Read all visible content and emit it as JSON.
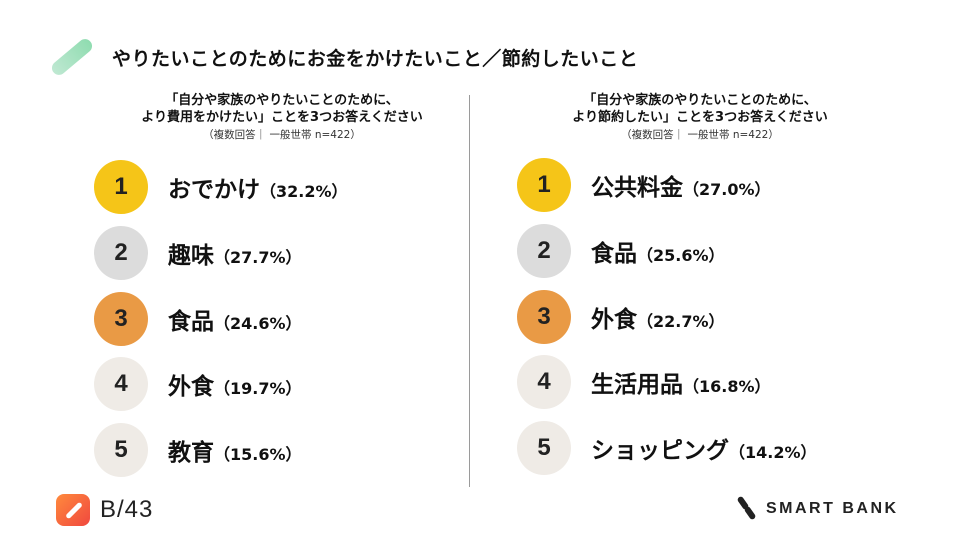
{
  "title": "やりたいことのためにお金をかけたいこと／節約したいこと",
  "left": {
    "question": "「自分や家族のやりたいことのために、\nより費用をかけたい」ことを3つお答えください",
    "note": "（複数回答｜ 一般世帯 n=422）",
    "ranks": [
      {
        "rank": "1",
        "name": "おでかけ",
        "pct": "（32.2%）"
      },
      {
        "rank": "2",
        "name": "趣味",
        "pct": "（27.7%）"
      },
      {
        "rank": "3",
        "name": "食品",
        "pct": "（24.6%）"
      },
      {
        "rank": "4",
        "name": "外食",
        "pct": "（19.7%）"
      },
      {
        "rank": "5",
        "name": "教育",
        "pct": "（15.6%）"
      }
    ]
  },
  "right": {
    "question": "「自分や家族のやりたいことのために、\nより節約したい」ことを3つお答えください",
    "note": "（複数回答｜ 一般世帯 n=422）",
    "ranks": [
      {
        "rank": "1",
        "name": "公共料金",
        "pct": "（27.0%）"
      },
      {
        "rank": "2",
        "name": "食品",
        "pct": "（25.6%）"
      },
      {
        "rank": "3",
        "name": "外食",
        "pct": "（22.7%）"
      },
      {
        "rank": "4",
        "name": "生活用品",
        "pct": "（16.8%）"
      },
      {
        "rank": "5",
        "name": "ショッピング",
        "pct": "（14.2%）"
      }
    ]
  },
  "footer": {
    "b43": "B/43",
    "smartbank": "SMART BANK"
  },
  "colors": {
    "rank1": "#f5c518",
    "rank2": "#dcdcdc",
    "rank3": "#e99a45",
    "rank4": "#efebe6",
    "rank5": "#efebe6"
  }
}
